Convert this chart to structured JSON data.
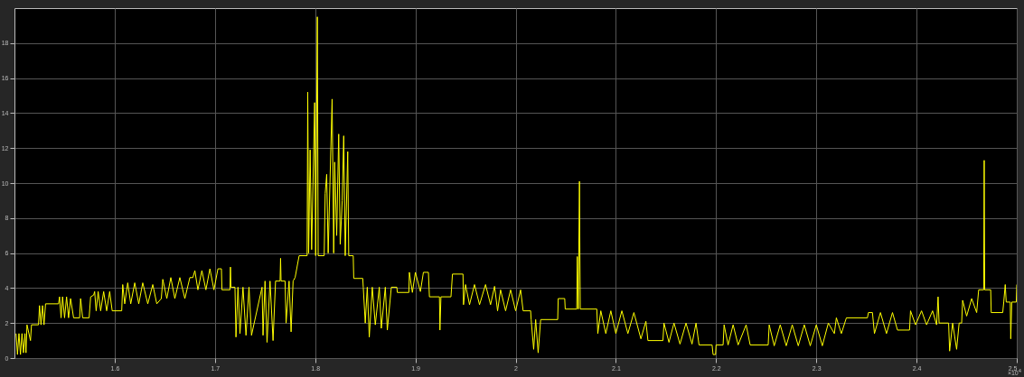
{
  "chart_data": {
    "type": "line",
    "x": [
      1.5016,
      1.503,
      1.5045,
      1.506,
      1.5075,
      1.509,
      1.5105,
      1.5115,
      1.5125,
      1.516,
      1.517,
      1.524,
      1.525,
      1.5265,
      1.528,
      1.5295,
      1.531,
      1.544,
      1.545,
      1.5465,
      1.548,
      1.55,
      1.552,
      1.554,
      1.556,
      1.559,
      1.565,
      1.566,
      1.568,
      1.5745,
      1.576,
      1.579,
      1.58,
      1.5815,
      1.5835,
      1.586,
      1.589,
      1.592,
      1.595,
      1.5975,
      1.607,
      1.608,
      1.61,
      1.613,
      1.616,
      1.62,
      1.624,
      1.628,
      1.633,
      1.638,
      1.642,
      1.6465,
      1.648,
      1.652,
      1.656,
      1.66,
      1.665,
      1.67,
      1.675,
      1.678,
      1.68,
      1.683,
      1.687,
      1.691,
      1.695,
      1.699,
      1.703,
      1.7065,
      1.707,
      1.715,
      1.7155,
      1.716,
      1.72,
      1.721,
      1.723,
      1.725,
      1.728,
      1.731,
      1.734,
      1.7365,
      1.747,
      1.748,
      1.75,
      1.752,
      1.755,
      1.758,
      1.7605,
      1.765,
      1.7655,
      1.766,
      1.77,
      1.771,
      1.774,
      1.776,
      1.778,
      1.78,
      1.784,
      1.792,
      1.7926,
      1.7935,
      1.795,
      1.7965,
      1.7995,
      1.8005,
      1.8022,
      1.803,
      1.809,
      1.81,
      1.8115,
      1.813,
      1.8169,
      1.8185,
      1.8195,
      1.8215,
      1.8235,
      1.825,
      1.827,
      1.8285,
      1.83,
      1.8325,
      1.8335,
      1.838,
      1.8385,
      1.8475,
      1.848,
      1.85,
      1.852,
      1.854,
      1.857,
      1.86,
      1.864,
      1.866,
      1.87,
      1.872,
      1.876,
      1.8815,
      1.882,
      1.8935,
      1.894,
      1.897,
      1.9,
      1.905,
      1.908,
      1.913,
      1.914,
      1.924,
      1.9245,
      1.9255,
      1.9355,
      1.937,
      1.9475,
      1.948,
      1.95,
      1.954,
      1.959,
      1.964,
      1.97,
      1.975,
      1.979,
      1.982,
      1.985,
      1.99,
      1.995,
      2.0,
      2.005,
      2.0075,
      2.015,
      2.0155,
      2.018,
      2.02,
      2.0225,
      2.025,
      2.042,
      2.0425,
      2.049,
      2.0495,
      2.061,
      2.0615,
      2.0625,
      2.0637,
      2.0645,
      2.081,
      2.082,
      2.085,
      2.09,
      2.095,
      2.1,
      2.106,
      2.112,
      2.118,
      2.125,
      2.13,
      2.132,
      2.147,
      2.148,
      2.153,
      2.158,
      2.164,
      2.17,
      2.176,
      2.18,
      2.183,
      2.196,
      2.197,
      2.1995,
      2.2,
      2.207,
      2.208,
      2.212,
      2.217,
      2.222,
      2.23,
      2.234,
      2.252,
      2.253,
      2.258,
      2.264,
      2.27,
      2.276,
      2.282,
      2.288,
      2.294,
      2.3,
      2.306,
      2.312,
      2.318,
      2.32,
      2.325,
      2.33,
      2.351,
      2.352,
      2.356,
      2.358,
      2.364,
      2.37,
      2.376,
      2.381,
      2.393,
      2.394,
      2.399,
      2.405,
      2.41,
      2.416,
      2.42,
      2.4215,
      2.4225,
      2.432,
      2.433,
      2.436,
      2.44,
      2.4425,
      2.445,
      2.446,
      2.45,
      2.455,
      2.46,
      2.462,
      2.467,
      2.4675,
      2.468,
      2.474,
      2.4745,
      2.486,
      2.487,
      2.4885,
      2.4895,
      2.4935,
      2.494,
      2.495,
      2.4995,
      2.5
    ],
    "series": [
      {
        "color": "#ffff00",
        "values": [
          1.4,
          0.2,
          1.4,
          0.2,
          1.4,
          0.3,
          1.4,
          0.3,
          1.9,
          1.0,
          1.9,
          1.9,
          3.0,
          1.9,
          3.0,
          1.9,
          3.1,
          3.1,
          3.5,
          2.3,
          3.5,
          2.3,
          3.5,
          2.3,
          3.4,
          2.3,
          2.3,
          3.4,
          2.3,
          2.3,
          3.5,
          3.6,
          3.8,
          2.7,
          3.8,
          2.7,
          3.8,
          2.7,
          3.8,
          2.7,
          2.7,
          4.2,
          3.1,
          4.3,
          3.1,
          4.3,
          3.1,
          4.3,
          3.1,
          4.2,
          3.1,
          3.4,
          4.5,
          3.4,
          4.6,
          3.4,
          4.6,
          3.4,
          4.6,
          4.6,
          5.0,
          3.9,
          5.0,
          3.9,
          5.1,
          3.9,
          5.1,
          5.1,
          3.9,
          3.9,
          5.2,
          4.05,
          4.05,
          1.2,
          4.05,
          1.4,
          4.05,
          1.3,
          4.05,
          1.3,
          4.05,
          1.3,
          4.4,
          0.9,
          4.4,
          1.0,
          4.4,
          4.4,
          5.7,
          4.4,
          4.4,
          2.0,
          4.4,
          1.5,
          4.4,
          4.6,
          5.85,
          5.85,
          15.2,
          6.0,
          11.9,
          6.2,
          14.6,
          5.85,
          19.5,
          5.85,
          5.85,
          9.4,
          10.5,
          6.0,
          14.8,
          6.0,
          11.2,
          7.0,
          12.8,
          6.5,
          9.0,
          12.7,
          5.85,
          11.8,
          5.85,
          5.85,
          4.55,
          4.55,
          4.05,
          2.0,
          4.05,
          1.2,
          4.05,
          1.9,
          4.05,
          1.7,
          4.05,
          1.6,
          4.05,
          4.05,
          3.75,
          3.75,
          4.9,
          3.75,
          4.9,
          3.8,
          4.9,
          4.9,
          3.5,
          3.5,
          1.6,
          3.5,
          3.5,
          4.8,
          4.8,
          3.05,
          4.2,
          3.05,
          4.2,
          3.05,
          4.2,
          3.05,
          4.1,
          2.7,
          3.9,
          2.7,
          3.9,
          2.7,
          3.9,
          2.7,
          2.7,
          2.2,
          0.5,
          2.2,
          0.3,
          2.2,
          2.2,
          3.4,
          3.4,
          2.8,
          2.8,
          5.8,
          2.8,
          10.1,
          2.8,
          2.8,
          1.4,
          2.7,
          1.4,
          2.7,
          1.4,
          2.7,
          1.4,
          2.6,
          1.1,
          2.1,
          1.0,
          1.0,
          2.0,
          0.9,
          2.0,
          0.8,
          2.0,
          0.8,
          2.0,
          0.75,
          0.75,
          0.2,
          0.2,
          0.75,
          0.75,
          1.9,
          0.75,
          1.9,
          0.75,
          1.9,
          0.75,
          0.75,
          1.9,
          0.7,
          1.9,
          0.7,
          1.9,
          0.7,
          1.9,
          0.7,
          1.9,
          0.7,
          2.0,
          1.4,
          2.3,
          1.4,
          2.3,
          2.3,
          2.6,
          2.6,
          1.4,
          2.6,
          1.4,
          2.6,
          1.6,
          1.6,
          2.7,
          1.9,
          2.7,
          1.9,
          2.7,
          1.9,
          3.5,
          2.0,
          2.0,
          0.4,
          2.0,
          0.5,
          2.0,
          2.0,
          3.3,
          2.4,
          3.4,
          2.6,
          3.9,
          3.9,
          11.3,
          3.9,
          3.9,
          2.6,
          2.6,
          3.2,
          4.2,
          3.2,
          3.2,
          1.1,
          3.2,
          3.2,
          4.2
        ]
      }
    ],
    "xlim": [
      1.5,
      2.5
    ],
    "ylim": [
      0,
      20
    ],
    "xticks": [
      1.6,
      1.7,
      1.8,
      1.9,
      2,
      2.1,
      2.2,
      2.3,
      2.4,
      2.5
    ],
    "yticks": [
      0,
      2,
      4,
      6,
      8,
      10,
      12,
      14,
      16,
      18
    ],
    "grid": true,
    "annotations": [
      "×10$^{4}$"
    ]
  }
}
